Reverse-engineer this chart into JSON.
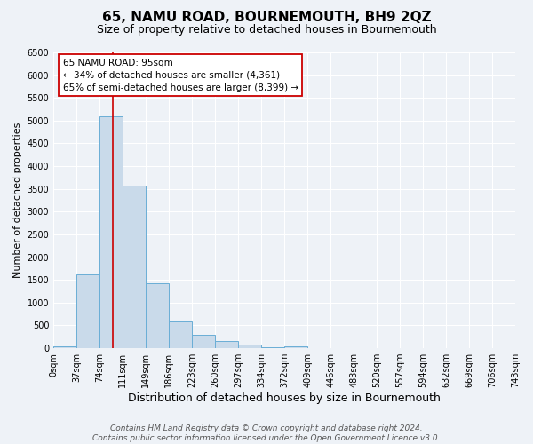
{
  "title": "65, NAMU ROAD, BOURNEMOUTH, BH9 2QZ",
  "subtitle": "Size of property relative to detached houses in Bournemouth",
  "xlabel": "Distribution of detached houses by size in Bournemouth",
  "ylabel": "Number of detached properties",
  "bin_edges": [
    0,
    37,
    74,
    111,
    149,
    186,
    223,
    260,
    297,
    334,
    372,
    409,
    446,
    483,
    520,
    557,
    594,
    632,
    669,
    706,
    743
  ],
  "bin_counts": [
    50,
    1620,
    5100,
    3580,
    1420,
    580,
    290,
    150,
    80,
    30,
    50,
    0,
    0,
    0,
    0,
    0,
    0,
    0,
    0,
    0
  ],
  "bar_color": "#c9daea",
  "bar_edge_color": "#6aaed6",
  "vline_x": 95,
  "vline_color": "#cc0000",
  "ylim": [
    0,
    6500
  ],
  "yticks": [
    0,
    500,
    1000,
    1500,
    2000,
    2500,
    3000,
    3500,
    4000,
    4500,
    5000,
    5500,
    6000,
    6500
  ],
  "annotation_title": "65 NAMU ROAD: 95sqm",
  "annotation_line1": "← 34% of detached houses are smaller (4,361)",
  "annotation_line2": "65% of semi-detached houses are larger (8,399) →",
  "annotation_box_color": "#ffffff",
  "annotation_box_edge": "#cc0000",
  "footer_line1": "Contains HM Land Registry data © Crown copyright and database right 2024.",
  "footer_line2": "Contains public sector information licensed under the Open Government Licence v3.0.",
  "bg_color": "#eef2f7",
  "grid_color": "#ffffff",
  "title_fontsize": 11,
  "subtitle_fontsize": 9,
  "xlabel_fontsize": 9,
  "ylabel_fontsize": 8,
  "tick_fontsize": 7,
  "footer_fontsize": 6.5,
  "annotation_fontsize": 7.5
}
